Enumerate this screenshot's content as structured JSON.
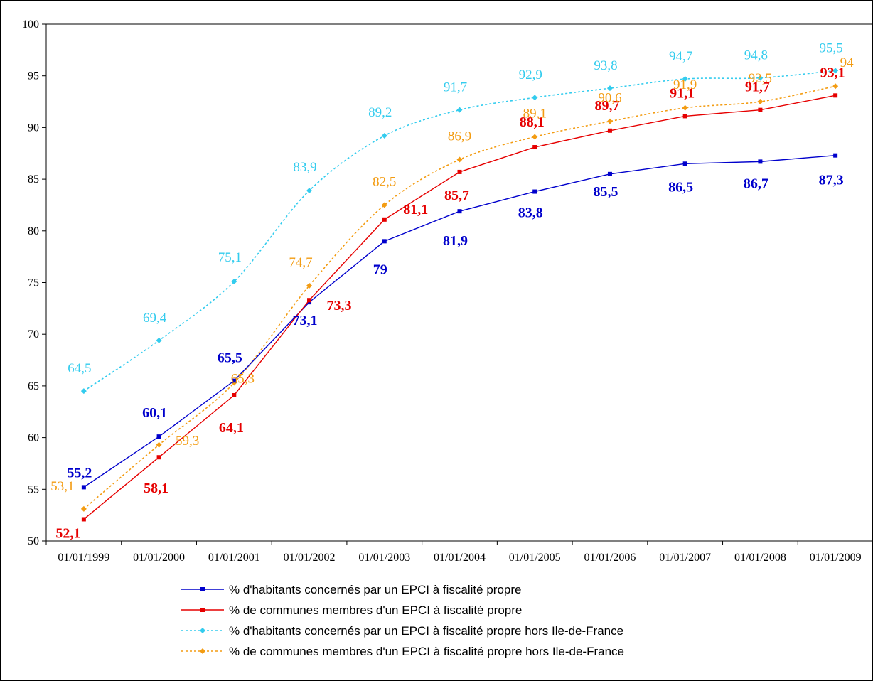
{
  "chart_data": {
    "type": "line",
    "title": "",
    "xlabel": "",
    "ylabel": "",
    "categories": [
      "01/01/1999",
      "01/01/2000",
      "01/01/2001",
      "01/01/2002",
      "01/01/2003",
      "01/01/2004",
      "01/01/2005",
      "01/01/2006",
      "01/01/2007",
      "01/01/2008",
      "01/01/2009"
    ],
    "ylim": [
      50,
      100
    ],
    "yticks": [
      "50",
      "55",
      "60",
      "65",
      "70",
      "75",
      "80",
      "85",
      "90",
      "95",
      "100"
    ],
    "grid": false,
    "legend_position": "bottom",
    "series": [
      {
        "name": "% d'habitants concernés par un EPCI à fiscalité propre",
        "color": "#0000CC",
        "line_style": "solid",
        "marker": "square",
        "label_style": "bold",
        "values": [
          55.2,
          60.1,
          65.5,
          73.1,
          79,
          81.9,
          83.8,
          85.5,
          86.5,
          86.7,
          87.3
        ],
        "labels": [
          "55,2",
          "60,1",
          "65,5",
          "73,1",
          "79",
          "81,9",
          "83,8",
          "85,5",
          "86,5",
          "86,7",
          "87,3"
        ]
      },
      {
        "name": "% de communes membres d'un EPCI à fiscalité propre",
        "color": "#E60000",
        "line_style": "solid",
        "marker": "square",
        "label_style": "bold",
        "values": [
          52.1,
          58.1,
          64.1,
          73.3,
          81.1,
          85.7,
          88.1,
          89.7,
          91.1,
          91.7,
          93.1
        ],
        "labels": [
          "52,1",
          "58,1",
          "64,1",
          "73,3",
          "81,1",
          "85,7",
          "88,1",
          "89,7",
          "91,1",
          "91,7",
          "93,1"
        ]
      },
      {
        "name": "% d'habitants concernés par un EPCI à fiscalité propre hors Ile-de-France",
        "color": "#33CCEE",
        "line_style": "dotted",
        "marker": "diamond",
        "label_style": "normal",
        "values": [
          64.5,
          69.4,
          75.1,
          83.9,
          89.2,
          91.7,
          92.9,
          93.8,
          94.7,
          94.8,
          95.5
        ],
        "labels": [
          "64,5",
          "69,4",
          "75,1",
          "83,9",
          "89,2",
          "91,7",
          "92,9",
          "93,8",
          "94,7",
          "94,8",
          "95,5"
        ]
      },
      {
        "name": "% de communes membres d'un EPCI à fiscalité propre hors Ile-de-France",
        "color": "#F39C12",
        "line_style": "dotted",
        "marker": "diamond",
        "label_style": "normal",
        "values": [
          53.1,
          59.3,
          65.3,
          74.7,
          82.5,
          86.9,
          89.1,
          90.6,
          91.9,
          92.5,
          94
        ],
        "labels": [
          "53,1",
          "59,3",
          "65,3",
          "74,7",
          "82,5",
          "86,9",
          "89,1",
          "90,6",
          "91,9",
          "92,5",
          "94"
        ]
      }
    ]
  }
}
